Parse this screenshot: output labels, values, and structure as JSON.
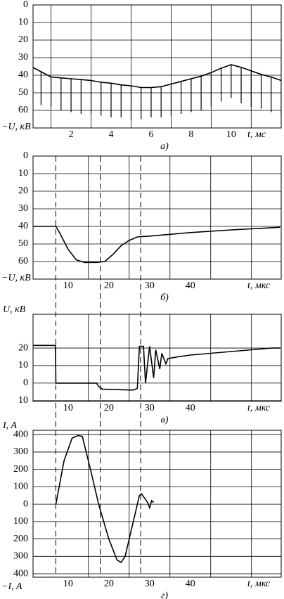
{
  "chart_data": [
    {
      "type": "line",
      "caption": "а)",
      "y_label_bottom": "−U, кВ",
      "x_label": "t, мс",
      "y_inverted": true,
      "xlim": [
        0.1,
        12.5
      ],
      "ylim": [
        0,
        70
      ],
      "xticks": [
        2,
        4,
        6,
        8,
        10
      ],
      "xgrid": [
        1,
        3,
        5,
        7,
        9,
        11
      ],
      "yticks": [
        0,
        10,
        20,
        30,
        40,
        50,
        60
      ],
      "x": [
        0,
        0.5,
        1,
        1.5,
        2,
        2.5,
        3,
        3.5,
        4,
        4.5,
        5,
        5.5,
        6,
        6.5,
        7,
        7.5,
        8,
        8.5,
        9,
        9.5,
        10,
        10.5,
        11,
        11.5,
        12,
        12.5
      ],
      "series": [
        {
          "color": "#000000",
          "values": [
            35,
            38,
            41,
            41.5,
            42,
            42.5,
            43,
            44,
            44.5,
            45.5,
            46,
            47,
            47,
            46.5,
            45,
            43.5,
            42,
            40.5,
            38.5,
            36,
            34,
            35.5,
            37.5,
            39.5,
            41,
            43
          ]
        },
        {
          "color": "#000000",
          "style": "hatch",
          "values": [
            55,
            57,
            58,
            60,
            61,
            62,
            62,
            63,
            64,
            64,
            65,
            65,
            64,
            64,
            63,
            62,
            61,
            60,
            58,
            55,
            53,
            56,
            58,
            59,
            61,
            63
          ]
        }
      ]
    },
    {
      "type": "line",
      "caption": "б)",
      "y_label_bottom": "−U, кВ",
      "x_label": "t, мкс",
      "y_inverted": true,
      "xlim": [
        1.4,
        62.3
      ],
      "ylim": [
        0,
        70
      ],
      "xticks": [
        10,
        20,
        30,
        40
      ],
      "xgrid": [
        15,
        25,
        35,
        45,
        55
      ],
      "yticks": [
        0,
        10,
        20,
        30,
        40,
        50,
        60
      ],
      "x": [
        1.5,
        7,
        8,
        10,
        12,
        14,
        17,
        19,
        21,
        23,
        25,
        27,
        30,
        40,
        50,
        62
      ],
      "series": [
        {
          "color": "#000000",
          "values": [
            40,
            40,
            44,
            53,
            59,
            60.5,
            60.5,
            60,
            56,
            51,
            48,
            46,
            45.5,
            43.5,
            42,
            40.5
          ]
        }
      ]
    },
    {
      "type": "line",
      "caption": "в)",
      "y_label_top": "U, кВ",
      "x_label": "t, мкс",
      "xlim": [
        1.4,
        62.3
      ],
      "ylim": [
        -10.5,
        39.3
      ],
      "xticks": [
        10,
        20,
        30,
        40
      ],
      "xgrid": [
        15,
        25,
        35,
        45,
        55
      ],
      "yticks": [
        {
          "value": -10,
          "label": "10"
        },
        0,
        10,
        20
      ],
      "x": [
        1.5,
        6.9,
        7,
        17,
        17.5,
        18.5,
        26,
        27,
        27.5,
        28.5,
        29,
        30,
        31,
        31.5,
        32.5,
        33,
        34,
        34.5,
        37,
        40,
        50,
        60,
        62
      ],
      "series": [
        {
          "color": "#000000",
          "values": [
            21.5,
            21.5,
            0,
            0,
            -2,
            -3.5,
            -4,
            -3,
            21,
            21,
            0,
            21,
            3,
            19,
            8,
            17,
            11,
            14,
            15,
            16,
            18,
            20,
            20
          ]
        }
      ]
    },
    {
      "type": "line",
      "caption": "г)",
      "y_label_top": "I, A",
      "y_label_bottom": "−I, A",
      "x_label": "t, мкс",
      "xlim": [
        1.4,
        62.3
      ],
      "ylim": [
        -420,
        425
      ],
      "xticks": [
        10,
        20,
        30,
        40
      ],
      "xgrid": [
        15,
        25,
        35,
        45,
        55
      ],
      "yticks": [
        400,
        300,
        200,
        100,
        0,
        {
          "value": -100,
          "label": "100"
        },
        {
          "value": -200,
          "label": "200"
        },
        {
          "value": -300,
          "label": "300"
        },
        {
          "value": -400,
          "label": "400"
        }
      ],
      "x": [
        7,
        9,
        11,
        12.5,
        13.5,
        15.5,
        17.5,
        20,
        22,
        23,
        24,
        26,
        27.5,
        28,
        29.5,
        30,
        30.5,
        31
      ],
      "series": [
        {
          "color": "#000000",
          "values": [
            0,
            250,
            380,
            395,
            390,
            200,
            0,
            -200,
            -320,
            -335,
            -300,
            -100,
            50,
            60,
            10,
            -20,
            20,
            10
          ]
        }
      ]
    }
  ],
  "dashed_lines": [
    7,
    17.9,
    27.8
  ]
}
